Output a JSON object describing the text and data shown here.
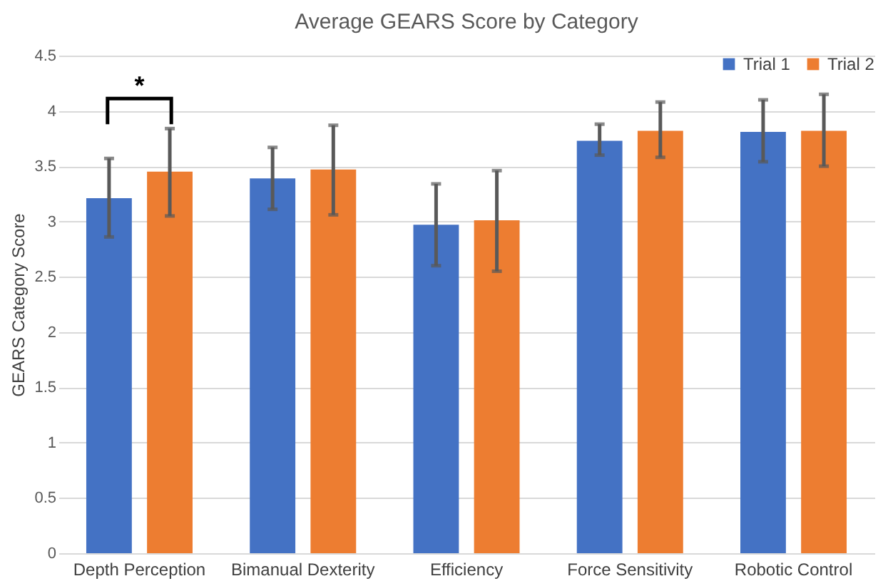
{
  "chart_data": {
    "type": "bar",
    "title": "Average GEARS Score by Category",
    "ylabel": "GEARS Category Score",
    "categories": [
      "Depth Perception",
      "Bimanual Dexterity",
      "Efficiency",
      "Force Sensitivity",
      "Robotic Control"
    ],
    "series": [
      {
        "name": "Trial 1",
        "color": "#4472c4",
        "values": [
          3.21,
          3.39,
          2.97,
          3.73,
          3.81
        ],
        "errors": [
          [
            2.86,
            3.57
          ],
          [
            3.11,
            3.67
          ],
          [
            2.6,
            3.34
          ],
          [
            3.6,
            3.88
          ],
          [
            3.54,
            4.1
          ]
        ]
      },
      {
        "name": "Trial 2",
        "color": "#ed7d31",
        "values": [
          3.45,
          3.47,
          3.01,
          3.82,
          3.82
        ],
        "errors": [
          [
            3.05,
            3.84
          ],
          [
            3.06,
            3.87
          ],
          [
            2.55,
            3.46
          ],
          [
            3.58,
            4.08
          ],
          [
            3.5,
            4.15
          ]
        ]
      }
    ],
    "ylim": [
      0,
      4.5
    ],
    "yticks": [
      0,
      0.5,
      1,
      1.5,
      2,
      2.5,
      3,
      3.5,
      4,
      4.5
    ],
    "grid": "y",
    "legend": "top right",
    "annotations": [
      "*"
    ]
  }
}
